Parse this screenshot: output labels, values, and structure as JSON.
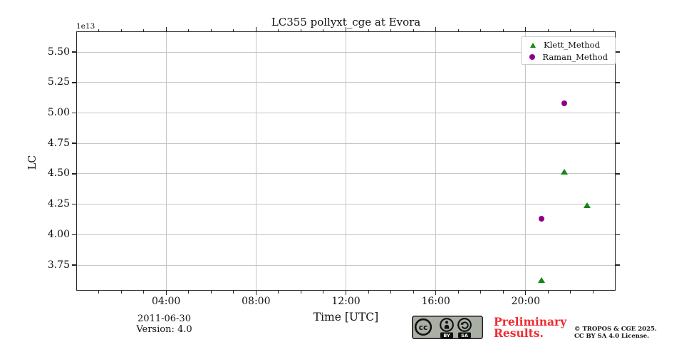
{
  "chart_data": {
    "type": "scatter",
    "title": "LC355 pollyxt_cge at Evora",
    "xlabel": "Time [UTC]",
    "ylabel": "LC",
    "y_offset_label": "1e13",
    "y_values_unit": "1e13",
    "xlim": [
      0,
      24
    ],
    "ylim": [
      3.54,
      5.67
    ],
    "grid": true,
    "colors": {
      "axis": "#262626",
      "grid": "#c6c6c6",
      "background": "#ffffff"
    },
    "xticks": [
      {
        "value": 4,
        "label": "04:00"
      },
      {
        "value": 8,
        "label": "08:00"
      },
      {
        "value": 12,
        "label": "12:00"
      },
      {
        "value": 16,
        "label": "16:00"
      },
      {
        "value": 20,
        "label": "20:00"
      }
    ],
    "x_minor_tick_every_hours": 1,
    "yticks": [
      {
        "value": 3.75,
        "label": "3.75"
      },
      {
        "value": 4.0,
        "label": "4.00"
      },
      {
        "value": 4.25,
        "label": "4.25"
      },
      {
        "value": 4.5,
        "label": "4.50"
      },
      {
        "value": 4.75,
        "label": "4.75"
      },
      {
        "value": 5.0,
        "label": "5.00"
      },
      {
        "value": 5.25,
        "label": "5.25"
      },
      {
        "value": 5.5,
        "label": "5.50"
      }
    ],
    "legend": {
      "position": "upper right"
    },
    "series": [
      {
        "name": "Klett_Method",
        "marker": "triangle",
        "color": "#148714",
        "points": [
          {
            "x": 20.7,
            "y": 3.63,
            "time": "20:42"
          },
          {
            "x": 21.72,
            "y": 4.52,
            "time": "21:43"
          },
          {
            "x": 22.72,
            "y": 4.24,
            "time": "22:43"
          }
        ]
      },
      {
        "name": "Raman_Method",
        "marker": "circle",
        "color": "#8b008b",
        "points": [
          {
            "x": 20.7,
            "y": 4.13,
            "time": "20:42"
          },
          {
            "x": 21.71,
            "y": 5.08,
            "time": "21:43"
          }
        ]
      }
    ]
  },
  "footer": {
    "date": "2011-06-30",
    "version": "Version: 4.0",
    "preliminary_line1": "Preliminary",
    "preliminary_line2": "Results.",
    "preliminary_color": "#ee2c31",
    "copyright_line1": "© TROPOS & CGE 2025.",
    "copyright_line2": "CC BY SA 4.0 License.",
    "badge": {
      "cc": "cc",
      "by": "BY",
      "sa": "SA"
    }
  }
}
